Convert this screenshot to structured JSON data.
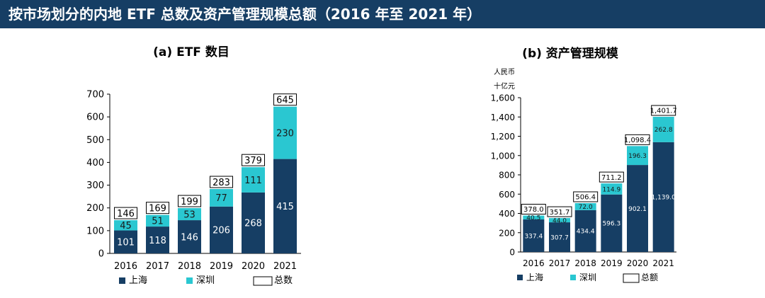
{
  "page": {
    "title": "按市场划分的内地 ETF 总数及资产管理规模总额（2016 年至 2021 年）"
  },
  "colors": {
    "shanghai": "#163e64",
    "shenzhen": "#2ac7d1",
    "total_border": "#000000"
  },
  "chart_data": [
    {
      "type": "bar",
      "stacked": true,
      "title": "(a)   ETF 数目",
      "categories": [
        "2016",
        "2017",
        "2018",
        "2019",
        "2020",
        "2021"
      ],
      "series": [
        {
          "name": "上海",
          "values": [
            101,
            118,
            146,
            206,
            268,
            415
          ]
        },
        {
          "name": "深圳",
          "values": [
            45,
            51,
            53,
            77,
            111,
            230
          ]
        }
      ],
      "totals": [
        "146",
        "169",
        "199",
        "283",
        "379",
        "645"
      ],
      "series_labels": [
        [
          "101",
          "118",
          "146",
          "206",
          "268",
          "415"
        ],
        [
          "45",
          "51",
          "53",
          "77",
          "111",
          "230"
        ]
      ],
      "yticks": [
        "0",
        "100",
        "200",
        "300",
        "400",
        "500",
        "600",
        "700"
      ],
      "ylim": [
        0,
        700
      ],
      "ylabel_lines": [],
      "legend_total": "总数",
      "legend_position": "bottom-left"
    },
    {
      "type": "bar",
      "stacked": true,
      "title": "(b)   资产管理规模",
      "categories": [
        "2016",
        "2017",
        "2018",
        "2019",
        "2020",
        "2021"
      ],
      "series": [
        {
          "name": "上海",
          "values": [
            337.4,
            307.7,
            434.4,
            596.3,
            902.1,
            1139.0
          ]
        },
        {
          "name": "深圳",
          "values": [
            40.5,
            44.0,
            72.0,
            114.9,
            196.3,
            262.8
          ]
        }
      ],
      "totals": [
        "378.0",
        "351.7",
        "506.4",
        "711.2",
        "1,098.4",
        "1,401.7"
      ],
      "series_labels": [
        [
          "337.4",
          "307.7",
          "434.4",
          "596.3",
          "902.1",
          "1,139.0"
        ],
        [
          "40.5",
          "44.0",
          "72.0",
          "114.9",
          "196.3",
          "262.8"
        ]
      ],
      "yticks": [
        "0",
        "200",
        "400",
        "600",
        "800",
        "1,000",
        "1,200",
        "1,400",
        "1,600"
      ],
      "ylim": [
        0,
        1600
      ],
      "ylabel_lines": [
        "人民币",
        "十亿元"
      ],
      "legend_total": "总额",
      "legend_position": "bottom-left"
    }
  ]
}
